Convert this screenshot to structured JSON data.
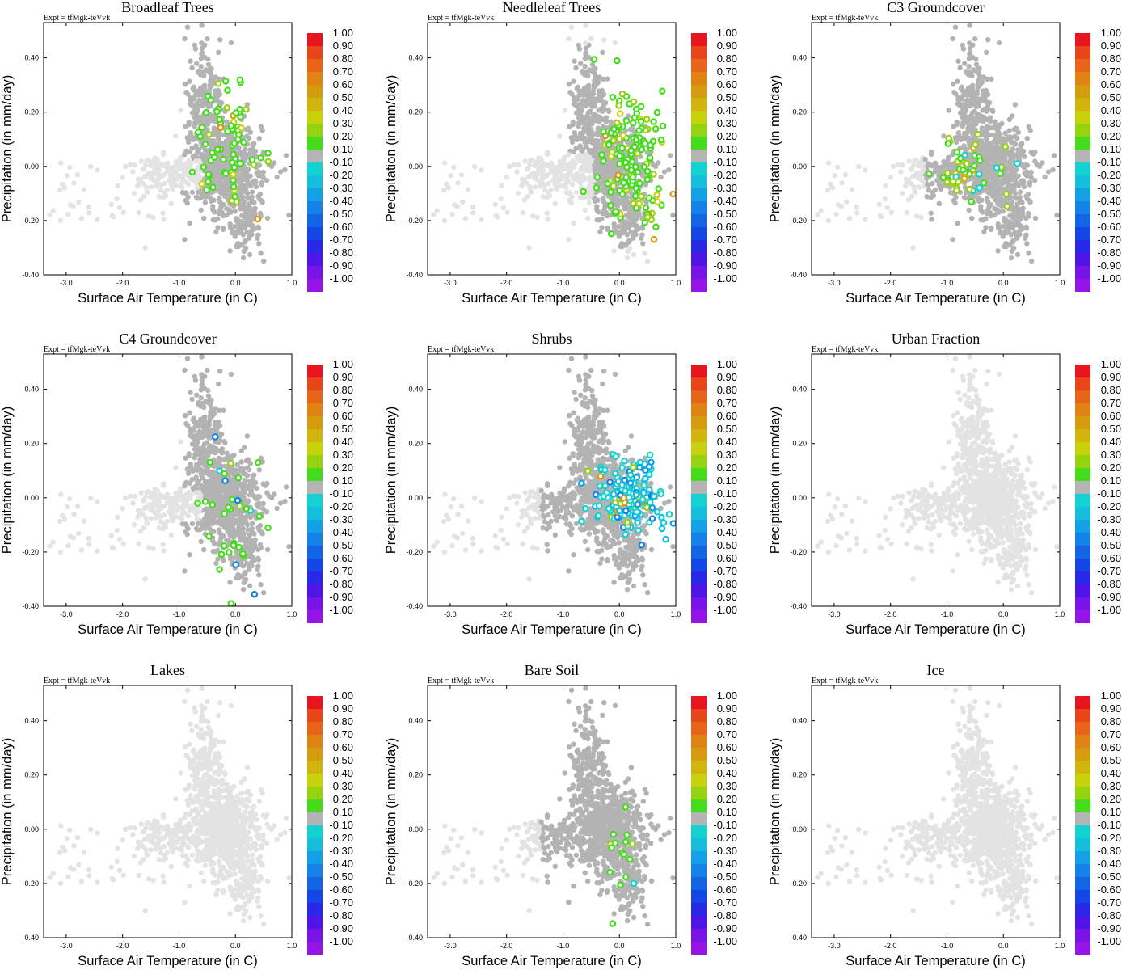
{
  "colors": {
    "background_points": "#e3e3e3",
    "neutral_points": "#b3b3b3",
    "colorbar": [
      "#e8141e",
      "#e8461a",
      "#e86418",
      "#e08214",
      "#d69c10",
      "#d2b40e",
      "#c8d20c",
      "#96d20f",
      "#46dc1e",
      "#b4b4b4",
      "#14d2d2",
      "#14bedc",
      "#14a0e6",
      "#1482e6",
      "#1464e6",
      "#1446e6",
      "#2828e6",
      "#5014e6",
      "#7814e6",
      "#9614e6"
    ],
    "colorbar_values": [
      "1.00",
      "0.90",
      "0.80",
      "0.70",
      "0.60",
      "0.50",
      "0.40",
      "0.30",
      "0.20",
      "0.10",
      "-0.10",
      "-0.20",
      "-0.30",
      "-0.40",
      "-0.50",
      "-0.60",
      "-0.70",
      "-0.80",
      "-0.90",
      "-1.00"
    ]
  },
  "chart_data": [
    {
      "type": "scatter",
      "title": "Broadleaf Trees",
      "expt": "Expt = tfMgk-teVvk",
      "xlabel": "Surface Air Temperature (in C)",
      "ylabel": "Precipitation (in mm/day)",
      "xlim": [
        -3.4,
        1.0
      ],
      "ylim": [
        -0.4,
        0.53
      ],
      "xticks": [
        "-3.0",
        "-2.0",
        "-1.0",
        "0.0",
        "1.0"
      ],
      "yticks": [
        "0.40",
        "0.20",
        "0.00",
        "-0.20",
        "-0.40"
      ],
      "gray": "mid",
      "colored_mode": "positive",
      "colored_count": 75,
      "colored_center": [
        -0.15,
        0.05
      ]
    },
    {
      "type": "scatter",
      "title": "Needleleaf Trees",
      "expt": "Expt = tfMgk-teVvk",
      "xlabel": "Surface Air Temperature (in C)",
      "ylabel": "Precipitation (in mm/day)",
      "xlim": [
        -3.4,
        1.0
      ],
      "ylim": [
        -0.4,
        0.53
      ],
      "xticks": [
        "-3.0",
        "-2.0",
        "-1.0",
        "0.0",
        "1.0"
      ],
      "yticks": [
        "0.40",
        "0.20",
        "0.00",
        "-0.20",
        "-0.40"
      ],
      "gray": "core",
      "colored_mode": "positive",
      "colored_count": 150,
      "colored_center": [
        0.2,
        0.02
      ]
    },
    {
      "type": "scatter",
      "title": "C3 Groundcover",
      "expt": "Expt = tfMgk-teVvk",
      "xlabel": "Surface Air Temperature (in C)",
      "ylabel": "Precipitation (in mm/day)",
      "xlim": [
        -3.4,
        1.0
      ],
      "ylim": [
        -0.4,
        0.53
      ],
      "xticks": [
        "-3.0",
        "-2.0",
        "-1.0",
        "0.0",
        "1.0"
      ],
      "yticks": [
        "0.40",
        "0.20",
        "0.00",
        "-0.20",
        "-0.40"
      ],
      "gray": "wide",
      "colored_mode": "positive_left",
      "colored_count": 55,
      "colored_center": [
        -0.6,
        -0.02
      ]
    },
    {
      "type": "scatter",
      "title": "C4 Groundcover",
      "expt": "Expt = tfMgk-teVvk",
      "xlabel": "Surface Air Temperature (in C)",
      "ylabel": "Precipitation (in mm/day)",
      "xlim": [
        -3.4,
        1.0
      ],
      "ylim": [
        -0.4,
        0.53
      ],
      "xticks": [
        "-3.0",
        "-2.0",
        "-1.0",
        "0.0",
        "1.0"
      ],
      "yticks": [
        "0.40",
        "0.20",
        "0.00",
        "-0.20",
        "-0.40"
      ],
      "gray": "mid",
      "colored_mode": "mixed_sparse",
      "colored_count": 35,
      "colored_center": [
        -0.1,
        -0.05
      ]
    },
    {
      "type": "scatter",
      "title": "Shrubs",
      "expt": "Expt = tfMgk-teVvk",
      "xlabel": "Surface Air Temperature (in C)",
      "ylabel": "Precipitation (in mm/day)",
      "xlim": [
        -3.4,
        1.0
      ],
      "ylim": [
        -0.4,
        0.53
      ],
      "xticks": [
        "-3.0",
        "-2.0",
        "-1.0",
        "0.0",
        "1.0"
      ],
      "yticks": [
        "0.40",
        "0.20",
        "0.00",
        "-0.20",
        "-0.40"
      ],
      "gray": "wide",
      "colored_mode": "negative",
      "colored_count": 170,
      "colored_center": [
        0.2,
        0.0
      ]
    },
    {
      "type": "scatter",
      "title": "Urban Fraction",
      "expt": "Expt = tfMgk-teVvk",
      "xlabel": "Surface Air Temperature (in C)",
      "ylabel": "Precipitation (in mm/day)",
      "xlim": [
        -3.4,
        1.0
      ],
      "ylim": [
        -0.4,
        0.53
      ],
      "xticks": [
        "-3.0",
        "-2.0",
        "-1.0",
        "0.0",
        "1.0"
      ],
      "yticks": [
        "0.40",
        "0.20",
        "0.00",
        "-0.20",
        "-0.40"
      ],
      "gray": "none",
      "colored_mode": "none",
      "colored_count": 0,
      "colored_center": [
        0,
        0
      ]
    },
    {
      "type": "scatter",
      "title": "Lakes",
      "expt": "Expt = tfMgk-teVvk",
      "xlabel": "Surface Air Temperature (in C)",
      "ylabel": "Precipitation (in mm/day)",
      "xlim": [
        -3.4,
        1.0
      ],
      "ylim": [
        -0.4,
        0.53
      ],
      "xticks": [
        "-3.0",
        "-2.0",
        "-1.0",
        "0.0",
        "1.0"
      ],
      "yticks": [
        "0.40",
        "0.20",
        "0.00",
        "-0.20",
        "-0.40"
      ],
      "gray": "none",
      "colored_mode": "none",
      "colored_count": 0,
      "colored_center": [
        0,
        0
      ]
    },
    {
      "type": "scatter",
      "title": "Bare Soil",
      "expt": "Expt = tfMgk-teVvk",
      "xlabel": "Surface Air Temperature (in C)",
      "ylabel": "Precipitation (in mm/day)",
      "xlim": [
        -3.4,
        1.0
      ],
      "ylim": [
        -0.4,
        0.53
      ],
      "xticks": [
        "-3.0",
        "-2.0",
        "-1.0",
        "0.0",
        "1.0"
      ],
      "yticks": [
        "0.40",
        "0.20",
        "0.00",
        "-0.20",
        "-0.40"
      ],
      "gray": "wide",
      "colored_mode": "bare",
      "colored_count": 16,
      "colored_center": [
        0.0,
        -0.15
      ]
    },
    {
      "type": "scatter",
      "title": "Ice",
      "expt": "Expt = tfMgk-teVvk",
      "xlabel": "Surface Air Temperature (in C)",
      "ylabel": "Precipitation (in mm/day)",
      "xlim": [
        -3.4,
        1.0
      ],
      "ylim": [
        -0.4,
        0.53
      ],
      "xticks": [
        "-3.0",
        "-2.0",
        "-1.0",
        "0.0",
        "1.0"
      ],
      "yticks": [
        "0.40",
        "0.20",
        "0.00",
        "-0.20",
        "-0.40"
      ],
      "gray": "none",
      "colored_mode": "none",
      "colored_count": 0,
      "colored_center": [
        0,
        0
      ]
    }
  ]
}
